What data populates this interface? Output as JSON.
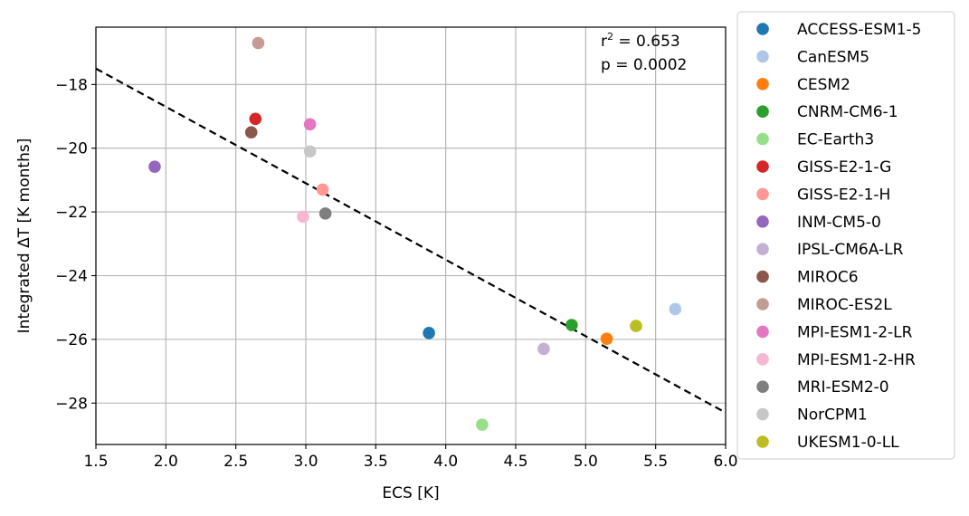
{
  "chart_data": {
    "type": "scatter",
    "xlabel": "ECS [K]",
    "ylabel": "Integrated ΔT [K months]",
    "xlim": [
      1.5,
      6.0
    ],
    "ylim": [
      -29.3,
      -16.2
    ],
    "xticks": [
      1.5,
      2.0,
      2.5,
      3.0,
      3.5,
      4.0,
      4.5,
      5.0,
      5.5,
      6.0
    ],
    "xtick_labels": [
      "1.5",
      "2.0",
      "2.5",
      "3.0",
      "3.5",
      "4.0",
      "4.5",
      "5.0",
      "5.5",
      "6.0"
    ],
    "yticks": [
      -28,
      -26,
      -24,
      -22,
      -20,
      -18
    ],
    "ytick_labels": [
      "−28",
      "−26",
      "−24",
      "−22",
      "−20",
      "−18"
    ],
    "grid": true,
    "legend_position": "outside-right",
    "annotation": {
      "r2_prefix": "r",
      "r2_sup": "2",
      "r2_value": " = 0.653",
      "p_text": "p = 0.0002"
    },
    "regression_line": {
      "style": "dashed",
      "color": "#000000",
      "points": [
        [
          1.5,
          -17.5
        ],
        [
          6.0,
          -28.3
        ]
      ]
    },
    "series": [
      {
        "name": "ACCESS-ESM1-5",
        "color": "#1f77b4",
        "x": 3.88,
        "y": -25.8
      },
      {
        "name": "CanESM5",
        "color": "#aec7e8",
        "x": 5.64,
        "y": -25.05
      },
      {
        "name": "CESM2",
        "color": "#ff7f0e",
        "x": 5.15,
        "y": -25.98
      },
      {
        "name": "CNRM-CM6-1",
        "color": "#2ca02c",
        "x": 4.9,
        "y": -25.55
      },
      {
        "name": "EC-Earth3",
        "color": "#98df8a",
        "x": 4.26,
        "y": -28.68
      },
      {
        "name": "GISS-E2-1-G",
        "color": "#d62728",
        "x": 2.64,
        "y": -19.08
      },
      {
        "name": "GISS-E2-1-H",
        "color": "#ff9896",
        "x": 3.12,
        "y": -21.3
      },
      {
        "name": "INM-CM5-0",
        "color": "#9467bd",
        "x": 1.92,
        "y": -20.58
      },
      {
        "name": "IPSL-CM6A-LR",
        "color": "#c5b0d5",
        "x": 4.7,
        "y": -26.3
      },
      {
        "name": "MIROC6",
        "color": "#8c564b",
        "x": 2.61,
        "y": -19.5
      },
      {
        "name": "MIROC-ES2L",
        "color": "#c49c94",
        "x": 2.66,
        "y": -16.7
      },
      {
        "name": "MPI-ESM1-2-LR",
        "color": "#e377c2",
        "x": 3.03,
        "y": -19.25
      },
      {
        "name": "MPI-ESM1-2-HR",
        "color": "#f7b6d2",
        "x": 2.98,
        "y": -22.15
      },
      {
        "name": "MRI-ESM2-0",
        "color": "#7f7f7f",
        "x": 3.14,
        "y": -22.05
      },
      {
        "name": "NorCPM1",
        "color": "#c7c7c7",
        "x": 3.03,
        "y": -20.1
      },
      {
        "name": "UKESM1-0-LL",
        "color": "#bcbd22",
        "x": 5.36,
        "y": -25.58
      }
    ]
  }
}
